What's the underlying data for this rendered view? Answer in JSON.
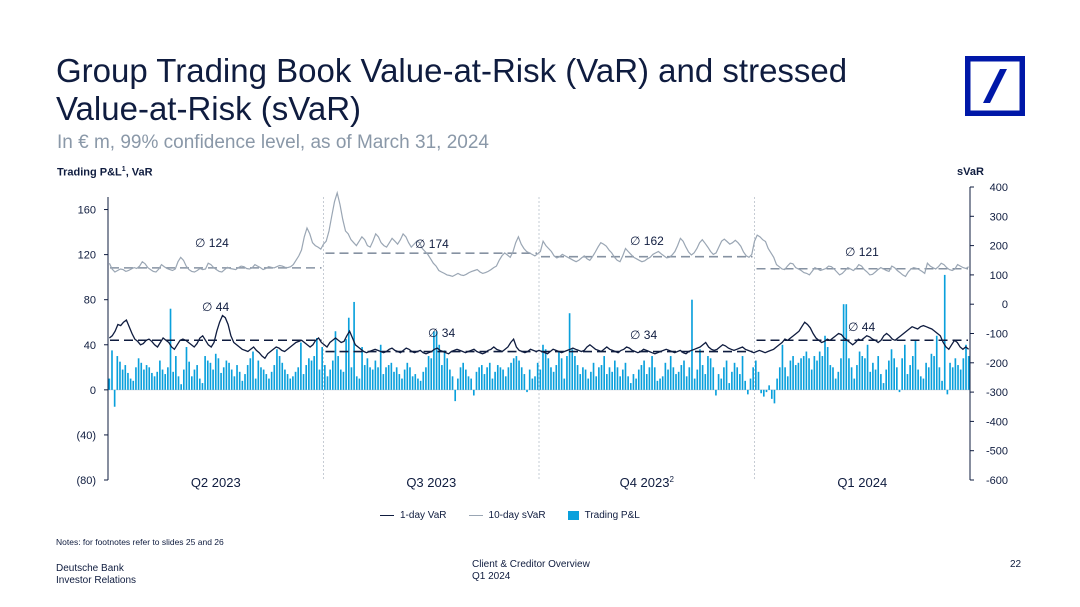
{
  "header": {
    "title": "Group Trading Book Value-at-Risk (VaR) and stressed Value-at-Risk (sVaR)",
    "subtitle": "In € m, 99% confidence level, as of March 31, 2024"
  },
  "axis_captions": {
    "left": "Trading P&L",
    "left_sup": "1",
    "left_suffix": ", VaR",
    "right": "sVaR"
  },
  "notes": "Notes: for footnotes refer to slides 25 and 26",
  "footer": {
    "company": "Deutsche Bank",
    "department": "Investor Relations",
    "doc_title": "Client & Creditor Overview",
    "doc_period": "Q1 2024",
    "page": "22"
  },
  "colors": {
    "navy": "#0f1c3f",
    "var_line": "#0f1c3f",
    "svar_line": "#9aa6b4",
    "pnl_bar": "#0aa0dc",
    "logo_blue": "#0018a8"
  },
  "chart_data": {
    "type": "bar",
    "quarters": [
      "Q2 2023",
      "Q3 2023",
      "Q4 2023",
      "Q1 2024"
    ],
    "quarter_sup": [
      "",
      "",
      "2",
      ""
    ],
    "left_axis": {
      "ylim": [
        -80,
        180
      ],
      "ticks": [
        160,
        120,
        80,
        40,
        0,
        -40,
        -80
      ],
      "tick_labels": [
        "160",
        "120",
        "80",
        "40",
        "0",
        "(40)",
        "(80)"
      ]
    },
    "right_axis": {
      "ylim": [
        -600,
        400
      ],
      "ticks": [
        400,
        300,
        200,
        100,
        0,
        -100,
        -200,
        -300,
        -400,
        -500,
        -600
      ],
      "tick_labels": [
        "400",
        "300",
        "200",
        "100",
        "0",
        "-100",
        "-200",
        "-300",
        "-400",
        "-500",
        "-600"
      ]
    },
    "averages": {
      "var": [
        44,
        34,
        34,
        44
      ],
      "svar": [
        124,
        174,
        162,
        121
      ],
      "var_labels": [
        "∅ 44",
        "∅ 34",
        "∅ 34",
        "∅ 44"
      ],
      "svar_labels": [
        "∅ 124",
        "∅ 174",
        "∅ 162",
        "∅ 121"
      ]
    },
    "series": [
      {
        "name": "1-day VaR",
        "type": "line",
        "axis": "left",
        "values": [
          46,
          48,
          52,
          58,
          57,
          60,
          62,
          56,
          50,
          45,
          43,
          40,
          41,
          44,
          45,
          43,
          40,
          38,
          42,
          46,
          44,
          42,
          38,
          36,
          40,
          44,
          45,
          44,
          42,
          40,
          38,
          41,
          46,
          48,
          44,
          40,
          38,
          42,
          52,
          60,
          66,
          64,
          58,
          48,
          42,
          40,
          38,
          36,
          35,
          34,
          36,
          38,
          35,
          33,
          30,
          28,
          32,
          34,
          36,
          38,
          37,
          35,
          34,
          36,
          38,
          40,
          42,
          43,
          44,
          42,
          40,
          38,
          40,
          44,
          46,
          42,
          40,
          38,
          42,
          44,
          46,
          44,
          42,
          43,
          48,
          52,
          46,
          40,
          38,
          36,
          34,
          33,
          34,
          35,
          36,
          35,
          34,
          33,
          34,
          36,
          37,
          35,
          34,
          33,
          35,
          37,
          36,
          34,
          33,
          34,
          35,
          33,
          32,
          33,
          34,
          36,
          37,
          35,
          34,
          33,
          32,
          34,
          35,
          36,
          35,
          34,
          33,
          34,
          35,
          36,
          34,
          33,
          32,
          33,
          35,
          36,
          38,
          36,
          35,
          34,
          36,
          38,
          42,
          45,
          38,
          35,
          34,
          33,
          34,
          36,
          35,
          34,
          35,
          34,
          33,
          32,
          34,
          36,
          35,
          34,
          33,
          34,
          35,
          36,
          37,
          36,
          35,
          34,
          35,
          38,
          40,
          38,
          36,
          35,
          34,
          36,
          38,
          36,
          35,
          34,
          33,
          35,
          36,
          38,
          37,
          35,
          34,
          33,
          34,
          36,
          35,
          34,
          33,
          32,
          33,
          34,
          35,
          36,
          35,
          34,
          33,
          34,
          35,
          33,
          32,
          34,
          35,
          36,
          37,
          38,
          40,
          42,
          38,
          36,
          35,
          36,
          38,
          40,
          39,
          37,
          36,
          35,
          36,
          37,
          38,
          36,
          35,
          34,
          33,
          34,
          35,
          34,
          33,
          34,
          35,
          36,
          38,
          40,
          42,
          45,
          44,
          46,
          48,
          50,
          52,
          56,
          60,
          58,
          55,
          50,
          46,
          44,
          42,
          43,
          45,
          44,
          46,
          48,
          50,
          49,
          46,
          44,
          42,
          40,
          42,
          45,
          44,
          46,
          48,
          47,
          45,
          44,
          42,
          44,
          48,
          50,
          48,
          45,
          44,
          46,
          48,
          50,
          52,
          54,
          56,
          55,
          54,
          56,
          57,
          56,
          55,
          54,
          52,
          50,
          48,
          42,
          38,
          36,
          40,
          44,
          42,
          38,
          36,
          38,
          36
        ],
        "ylim": [
          -80,
          180
        ]
      },
      {
        "name": "10-day sVaR",
        "type": "line",
        "axis": "right",
        "values": [
          140,
          120,
          110,
          115,
          120,
          118,
          112,
          115,
          120,
          125,
          122,
          130,
          145,
          138,
          125,
          118,
          112,
          110,
          120,
          135,
          128,
          122,
          118,
          115,
          120,
          145,
          160,
          150,
          130,
          118,
          112,
          110,
          115,
          122,
          118,
          120,
          140,
          135,
          125,
          118,
          112,
          110,
          118,
          126,
          122,
          120,
          118,
          125,
          130,
          128,
          122,
          120,
          124,
          135,
          130,
          125,
          118,
          122,
          128,
          126,
          124,
          128,
          132,
          130,
          126,
          125,
          128,
          135,
          150,
          165,
          185,
          230,
          260,
          240,
          210,
          200,
          195,
          188,
          205,
          215,
          250,
          300,
          350,
          380,
          340,
          290,
          250,
          240,
          220,
          210,
          200,
          215,
          230,
          220,
          200,
          195,
          215,
          240,
          230,
          210,
          200,
          195,
          210,
          225,
          215,
          205,
          220,
          240,
          230,
          210,
          195,
          205,
          215,
          210,
          190,
          180,
          170,
          155,
          140,
          130,
          115,
          110,
          105,
          100,
          98,
          95,
          100,
          105,
          100,
          98,
          102,
          108,
          112,
          115,
          118,
          110,
          105,
          108,
          112,
          118,
          125,
          130,
          150,
          165,
          175,
          168,
          160,
          178,
          210,
          230,
          205,
          190,
          180,
          175,
          170,
          165,
          172,
          180,
          215,
          200,
          190,
          180,
          165,
          158,
          162,
          170,
          165,
          160,
          155,
          150,
          145,
          150,
          158,
          165,
          155,
          150,
          162,
          178,
          195,
          210,
          205,
          198,
          185,
          175,
          160,
          150,
          145,
          165,
          190,
          180,
          170,
          160,
          155,
          150,
          145,
          148,
          155,
          160,
          170,
          175,
          180,
          172,
          165,
          158,
          160,
          168,
          180,
          200,
          225,
          215,
          195,
          178,
          168,
          175,
          190,
          210,
          220,
          208,
          195,
          180,
          170,
          175,
          195,
          215,
          222,
          214,
          205,
          210,
          218,
          210,
          198,
          178,
          165,
          160,
          170,
          215,
          236,
          230,
          220,
          214,
          190,
          175,
          160,
          135,
          128,
          120,
          118,
          130,
          140,
          138,
          125,
          120,
          115,
          108,
          105,
          100,
          112,
          125,
          120,
          115,
          118,
          122,
          130,
          128,
          120,
          110,
          100,
          105,
          115,
          125,
          120,
          115,
          122,
          135,
          130,
          118,
          110,
          100,
          102,
          110,
          118,
          125,
          120,
          115,
          112,
          130,
          125,
          115,
          108,
          100,
          95,
          110,
          120,
          125,
          122,
          118,
          112,
          105,
          140,
          130,
          125,
          120,
          128,
          140,
          135,
          125,
          118,
          115,
          120,
          135,
          130,
          125,
          122,
          128
        ],
        "ylim": [
          -600,
          400
        ]
      },
      {
        "name": "Trading P&L",
        "type": "bar",
        "axis": "left",
        "values": [
          10,
          35,
          -15,
          30,
          25,
          18,
          22,
          15,
          10,
          8,
          20,
          28,
          24,
          18,
          22,
          20,
          15,
          12,
          16,
          26,
          18,
          14,
          20,
          72,
          16,
          30,
          12,
          5,
          18,
          38,
          25,
          12,
          18,
          22,
          10,
          6,
          30,
          26,
          24,
          18,
          32,
          28,
          15,
          20,
          26,
          24,
          18,
          12,
          22,
          16,
          8,
          14,
          22,
          28,
          34,
          10,
          26,
          20,
          18,
          14,
          10,
          16,
          22,
          36,
          30,
          24,
          18,
          14,
          10,
          12,
          16,
          20,
          42,
          14,
          22,
          28,
          26,
          30,
          46,
          18,
          38,
          22,
          12,
          18,
          26,
          52,
          30,
          18,
          16,
          45,
          64,
          20,
          78,
          12,
          10,
          38,
          22,
          28,
          20,
          18,
          26,
          20,
          40,
          14,
          20,
          22,
          24,
          16,
          20,
          14,
          10,
          18,
          24,
          20,
          12,
          14,
          10,
          8,
          16,
          20,
          30,
          28,
          52,
          52,
          40,
          22,
          35,
          28,
          18,
          12,
          -10,
          10,
          20,
          24,
          18,
          12,
          10,
          -5,
          16,
          20,
          22,
          14,
          20,
          24,
          10,
          16,
          22,
          20,
          18,
          12,
          20,
          24,
          28,
          30,
          26,
          20,
          14,
          -2,
          18,
          10,
          12,
          24,
          18,
          40,
          36,
          28,
          20,
          16,
          22,
          34,
          28,
          10,
          30,
          68,
          36,
          30,
          22,
          14,
          20,
          18,
          10,
          16,
          24,
          12,
          20,
          22,
          30,
          14,
          20,
          16,
          26,
          20,
          12,
          18,
          24,
          12,
          6,
          14,
          10,
          18,
          22,
          26,
          14,
          20,
          30,
          20,
          8,
          10,
          12,
          24,
          18,
          30,
          20,
          14,
          16,
          22,
          26,
          12,
          20,
          80,
          10,
          18,
          36,
          22,
          14,
          30,
          28,
          20,
          -5,
          14,
          10,
          20,
          26,
          6,
          16,
          24,
          20,
          14,
          30,
          8,
          -4,
          10,
          20,
          26,
          16,
          -3,
          -6,
          -2,
          4,
          -8,
          -12,
          10,
          20,
          40,
          20,
          12,
          26,
          30,
          22,
          24,
          28,
          30,
          34,
          28,
          18,
          30,
          26,
          34,
          30,
          48,
          38,
          22,
          20,
          10,
          16,
          28,
          76,
          76,
          28,
          20,
          10,
          22,
          34,
          30,
          28,
          40,
          16,
          24,
          18,
          30,
          14,
          6,
          18,
          26,
          36,
          28,
          20,
          -2,
          28,
          40,
          14,
          22,
          30,
          44,
          18,
          12,
          10,
          24,
          20,
          32,
          30,
          48,
          20,
          8,
          102,
          -4,
          24,
          20,
          28,
          22,
          18,
          28,
          40,
          30
        ]
      }
    ]
  }
}
